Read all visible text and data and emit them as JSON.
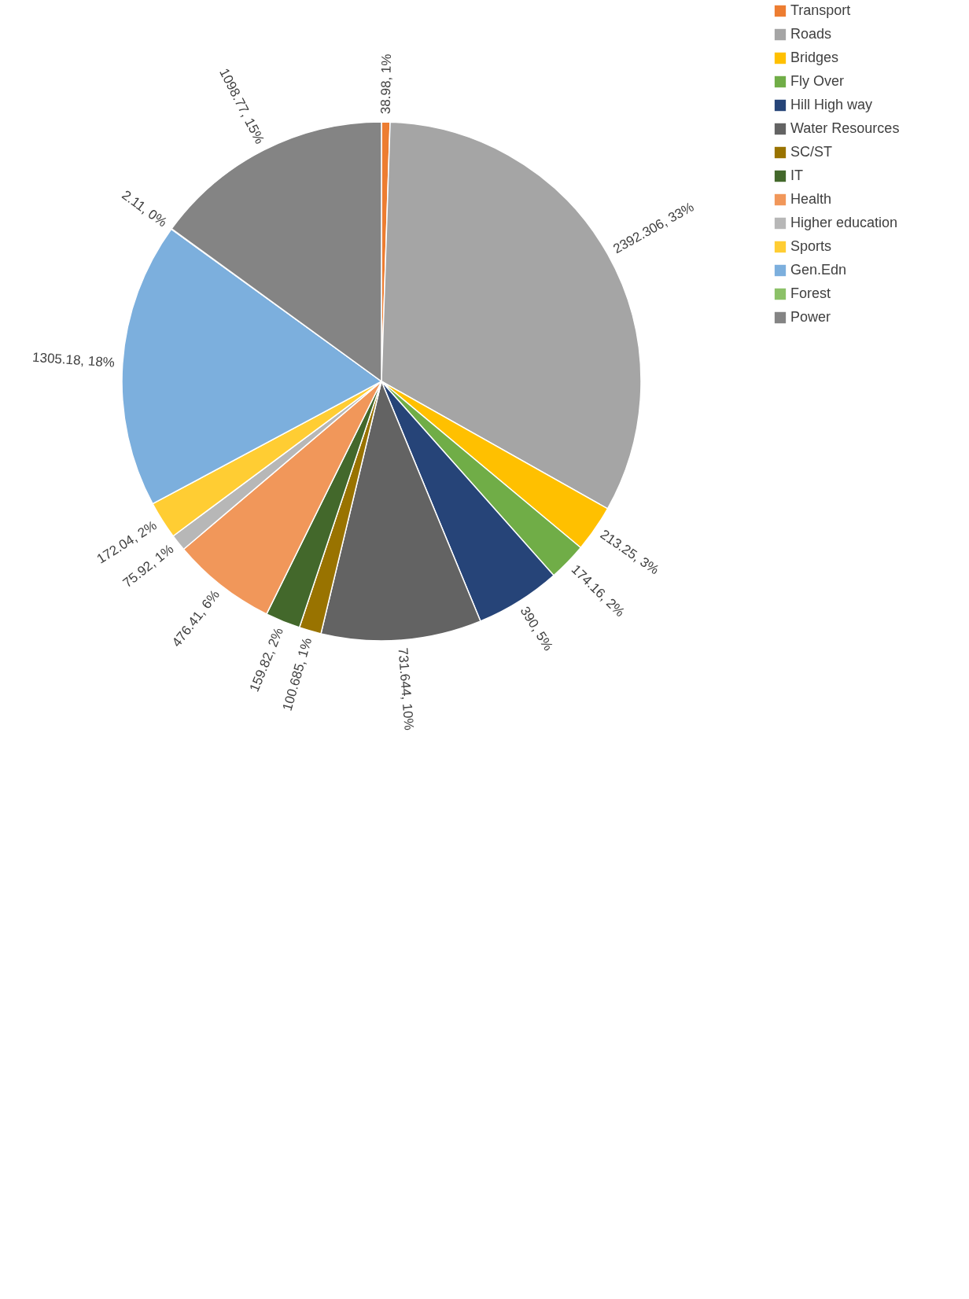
{
  "chart_data": {
    "type": "pie",
    "categories": [
      "Transport",
      "Roads",
      "Bridges",
      "Fly Over",
      "Hill High way",
      "Water Resources",
      "SC/ST",
      "IT",
      "Health",
      "Higher education",
      "Sports",
      "Gen.Edn",
      "Forest",
      "Power"
    ],
    "values": [
      38.98,
      2392.306,
      213.25,
      174.16,
      390,
      731.644,
      100.685,
      159.82,
      476.41,
      75.92,
      172.04,
      1305.18,
      2.11,
      1098.77
    ],
    "colors": [
      "#ed7d31",
      "#a5a5a5",
      "#ffc000",
      "#70ad47",
      "#264478",
      "#636363",
      "#997300",
      "#43682b",
      "#f1975a",
      "#b7b7b7",
      "#ffcd33",
      "#7cafdd",
      "#8cc168",
      "#848484"
    ],
    "value_labels": [
      "38.98, 1%",
      "2392.306, 33%",
      "213.25, 3%",
      "174.16, 2%",
      "390, 5%",
      "731.644, 10%",
      "100.685, 1%",
      "159.82, 2%",
      "476.41, 6%",
      "75.92, 1%",
      "172.04, 2%",
      "1305.18, 18%",
      "2.11, 0%",
      "1098.77, 15%"
    ],
    "legend": "right"
  }
}
